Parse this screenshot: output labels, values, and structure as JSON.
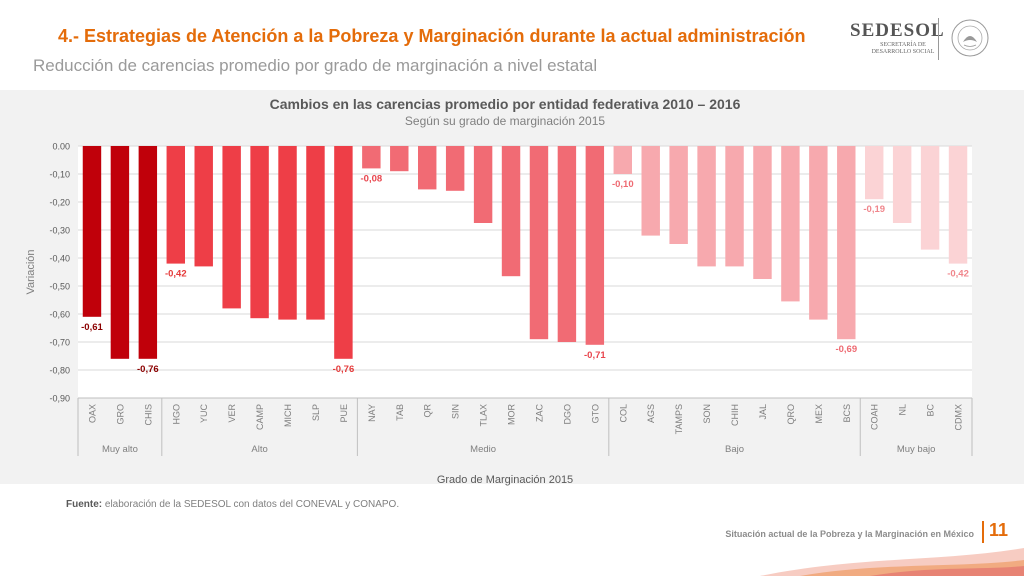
{
  "header": {
    "title": "4.- Estrategias de Atención a la Pobreza y Marginación durante la actual administración",
    "subtitle": "Reducción de carencias promedio por grado de marginación a nivel estatal"
  },
  "logo": {
    "name": "SEDESOL",
    "subtitle_line1": "SECRETARÍA DE",
    "subtitle_line2": "DESARROLLO SOCIAL"
  },
  "chart_data": {
    "type": "bar",
    "title": "Cambios en las carencias promedio por entidad federativa 2010 – 2016",
    "subtitle": "Según su grado de marginación 2015",
    "xlabel": "Grado de Marginación 2015",
    "ylabel": "Variación",
    "ylim": [
      -0.9,
      0.0
    ],
    "yticks": [
      "0.00",
      "-0,10",
      "-0,20",
      "-0,30",
      "-0,40",
      "-0,50",
      "-0,60",
      "-0,70",
      "-0,80",
      "-0,90"
    ],
    "grid": true,
    "groups": [
      {
        "name": "Muy alto",
        "color": "#c0000a",
        "label_color": "#8b0000",
        "categories": [
          "OAX",
          "GRO",
          "CHIS"
        ],
        "values": [
          -0.61,
          -0.76,
          -0.76
        ],
        "data_labels": [
          "-0,61",
          "",
          "-0,76"
        ]
      },
      {
        "name": "Alto",
        "color": "#ee3e47",
        "label_color": "#e53a3a",
        "categories": [
          "HGO",
          "YUC",
          "VER",
          "CAMP",
          "MICH",
          "SLP",
          "PUE"
        ],
        "values": [
          -0.42,
          -0.43,
          -0.58,
          -0.615,
          -0.62,
          -0.62,
          -0.76
        ],
        "data_labels": [
          "-0,42",
          "",
          "",
          "",
          "",
          "",
          "-0,76"
        ]
      },
      {
        "name": "Medio",
        "color": "#f16b74",
        "label_color": "#e8454d",
        "categories": [
          "NAY",
          "TAB",
          "QR",
          "SIN",
          "TLAX",
          "MOR",
          "ZAC",
          "DGO",
          "GTO"
        ],
        "values": [
          -0.08,
          -0.09,
          -0.155,
          -0.16,
          -0.275,
          -0.465,
          -0.69,
          -0.7,
          -0.71
        ],
        "data_labels": [
          "-0,08",
          "",
          "",
          "",
          "",
          "",
          "",
          "",
          "-0,71"
        ]
      },
      {
        "name": "Bajo",
        "color": "#f7a9ae",
        "label_color": "#ee6a72",
        "categories": [
          "COL",
          "AGS",
          "TAMPS",
          "SON",
          "CHIH",
          "JAL",
          "QRO",
          "MEX",
          "BCS"
        ],
        "values": [
          -0.1,
          -0.32,
          -0.35,
          -0.43,
          -0.43,
          -0.475,
          -0.555,
          -0.62,
          -0.69
        ],
        "data_labels": [
          "-0,10",
          "",
          "",
          "",
          "",
          "",
          "",
          "",
          "-0,69"
        ]
      },
      {
        "name": "Muy bajo",
        "color": "#fbd3d5",
        "label_color": "#f0868c",
        "categories": [
          "COAH",
          "NL",
          "BC",
          "CDMX"
        ],
        "values": [
          -0.19,
          -0.275,
          -0.37,
          -0.42
        ],
        "data_labels": [
          "-0,19",
          "",
          "",
          "-0,42"
        ]
      }
    ]
  },
  "source": {
    "label": "Fuente:",
    "text": "elaboración de la SEDESOL con datos del CONEVAL y CONAPO."
  },
  "footer": {
    "text": "Situación actual de la Pobreza y la Marginación en México",
    "page_number": "11"
  }
}
